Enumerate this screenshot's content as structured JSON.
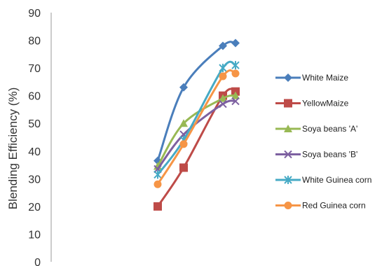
{
  "chart_data": {
    "type": "line",
    "title": "",
    "xlabel": "",
    "ylabel": "Blending Efficiency  (%)",
    "ylim": [
      0,
      90
    ],
    "yticks": [
      0,
      10,
      20,
      30,
      40,
      50,
      60,
      70,
      80,
      90
    ],
    "x": [
      1,
      2,
      3,
      3.5
    ],
    "grid": false,
    "legend_position": "right",
    "series": [
      {
        "name": "White Maize",
        "color": "#4a7ebb",
        "marker": "diamond",
        "values": [
          36.5,
          63,
          78,
          79
        ]
      },
      {
        "name": "YellowMaize",
        "color": "#be4b48",
        "marker": "square",
        "values": [
          20,
          34,
          60,
          61.5
        ]
      },
      {
        "name": "Soya beans 'A'",
        "color": "#98b954",
        "marker": "triangle",
        "values": [
          34.5,
          50,
          59,
          60
        ]
      },
      {
        "name": "Soya beans 'B'",
        "color": "#7d60a0",
        "marker": "x",
        "values": [
          33.5,
          46,
          57,
          58
        ]
      },
      {
        "name": "White Guinea corn",
        "color": "#46aac5",
        "marker": "star",
        "values": [
          31.5,
          44,
          70,
          71
        ]
      },
      {
        "name": "Red Guinea corn",
        "color": "#f69546",
        "marker": "circle",
        "values": [
          28,
          42.5,
          67,
          68
        ]
      }
    ]
  }
}
